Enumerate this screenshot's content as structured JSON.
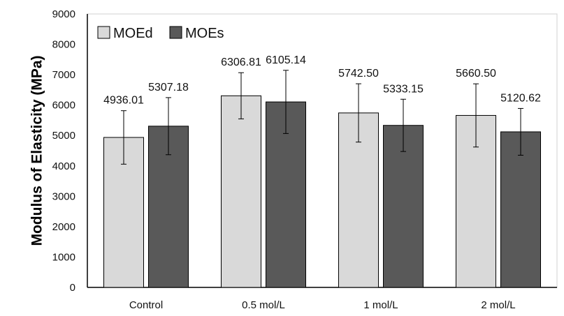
{
  "chart_data": {
    "type": "bar",
    "categories": [
      "Control",
      "0.5 mol/L",
      "1 mol/L",
      "2 mol/L"
    ],
    "series": [
      {
        "name": "MOEd",
        "values": [
          4936.01,
          6306.81,
          5742.5,
          5660.5
        ],
        "value_labels": [
          "4936.01",
          "6306.81",
          "5742.50",
          "5660.50"
        ],
        "error": [
          880,
          760,
          960,
          1040
        ],
        "color": "#d9d9d9"
      },
      {
        "name": "MOEs",
        "values": [
          5307.18,
          6105.14,
          5333.15,
          5120.62
        ],
        "value_labels": [
          "5307.18",
          "6105.14",
          "5333.15",
          "5120.62"
        ],
        "error": [
          940,
          1040,
          860,
          770
        ],
        "color": "#595959"
      }
    ],
    "ylabel": "Modulus of Elasticity  (MPa)",
    "xlabel": "",
    "ylim": [
      0,
      9000
    ],
    "yticks": [
      0,
      1000,
      2000,
      3000,
      4000,
      5000,
      6000,
      7000,
      8000,
      9000
    ],
    "legend": "top-left",
    "grid": false,
    "bar_outline": "#000000"
  }
}
